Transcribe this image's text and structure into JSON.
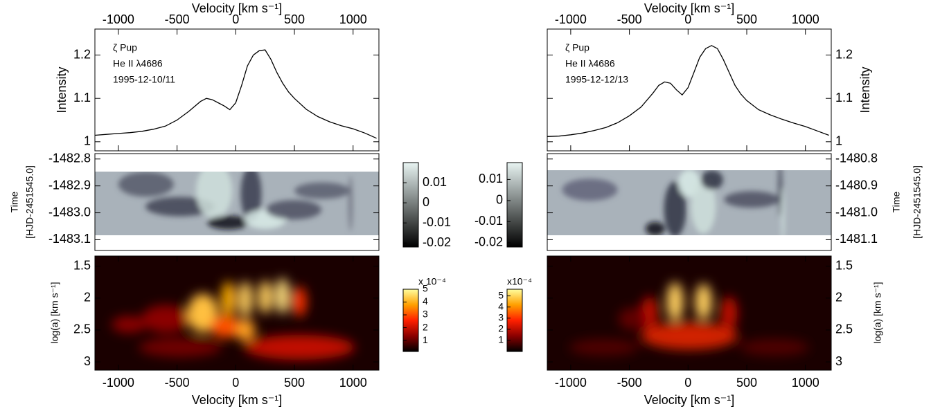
{
  "chart_data": [
    {
      "type": "line",
      "xlabel": "Velocity [km s⁻¹]",
      "ylabel": "Intensity",
      "annotations": [
        "ζ Pup",
        "He II λ4686",
        "1995-12-10/11"
      ],
      "x": [
        -1200,
        -1100,
        -1000,
        -900,
        -800,
        -700,
        -600,
        -500,
        -400,
        -300,
        -250,
        -200,
        -150,
        -100,
        -50,
        0,
        50,
        100,
        150,
        200,
        250,
        300,
        350,
        400,
        450,
        500,
        600,
        700,
        800,
        900,
        1000,
        1100,
        1200
      ],
      "values": [
        1.015,
        1.017,
        1.019,
        1.021,
        1.024,
        1.029,
        1.036,
        1.05,
        1.07,
        1.093,
        1.1,
        1.097,
        1.09,
        1.083,
        1.074,
        1.09,
        1.13,
        1.175,
        1.2,
        1.21,
        1.212,
        1.19,
        1.16,
        1.135,
        1.115,
        1.1,
        1.075,
        1.058,
        1.046,
        1.037,
        1.03,
        1.02,
        1.008
      ],
      "color": "#000000",
      "xlim": [
        -1200,
        1220
      ],
      "xticks": [
        -1000,
        -500,
        0,
        500,
        1000
      ],
      "ylim": [
        0.979,
        1.26
      ],
      "yticks": [
        1,
        1.1,
        1.2
      ]
    },
    {
      "type": "heatmap",
      "ylabel": "Time",
      "ylabel2": "[HJD-2451545.0]",
      "ylim": [
        -1483.14,
        -1482.78
      ],
      "yticks": [
        -1482.8,
        -1482.9,
        {
          "value": -1483,
          "label": "-1483.0"
        },
        -1483.1
      ],
      "colormap": [
        "#000000",
        "#e8f4f2"
      ],
      "clim": [
        -0.022,
        0.02
      ],
      "cticks": [
        0.01,
        0,
        -0.01,
        -0.02
      ]
    },
    {
      "type": "heatmap",
      "ylabel": "log(a) [km s⁻¹]",
      "xlabel": "Velocity [km s⁻¹]",
      "ylim": [
        1.34,
        3.13
      ],
      "y_inverted": true,
      "yticks": [
        1.5,
        2,
        2.5,
        3
      ],
      "xlim": [
        -1200,
        1220
      ],
      "xticks": [
        -1000,
        -500,
        0,
        500,
        1000
      ],
      "colormap": [
        "#000000",
        "#8b0000",
        "#ff2000",
        "#ffa000",
        "#ffffa0"
      ],
      "clim": [
        0.14,
        5
      ],
      "cticks": [
        5,
        4,
        3,
        2,
        1
      ],
      "clabel": "x 10⁻⁴"
    },
    {
      "type": "line",
      "xlabel": "Velocity [km s⁻¹]",
      "ylabel": "Intensity",
      "annotations": [
        "ζ Pup",
        "He II λ4686",
        "1995-12-12/13"
      ],
      "x": [
        -1200,
        -1100,
        -1000,
        -900,
        -800,
        -700,
        -600,
        -500,
        -400,
        -300,
        -250,
        -200,
        -150,
        -100,
        -50,
        0,
        50,
        100,
        150,
        200,
        250,
        300,
        350,
        400,
        450,
        500,
        600,
        700,
        800,
        900,
        1000,
        1100,
        1200
      ],
      "values": [
        1.012,
        1.013,
        1.016,
        1.02,
        1.026,
        1.033,
        1.044,
        1.06,
        1.08,
        1.112,
        1.13,
        1.138,
        1.135,
        1.12,
        1.108,
        1.125,
        1.16,
        1.195,
        1.215,
        1.222,
        1.215,
        1.19,
        1.16,
        1.13,
        1.11,
        1.095,
        1.074,
        1.062,
        1.052,
        1.043,
        1.035,
        1.025,
        1.015
      ],
      "color": "#000000",
      "xlim": [
        -1200,
        1220
      ],
      "xticks": [
        -1000,
        -500,
        0,
        500,
        1000
      ],
      "ylim": [
        0.979,
        1.26
      ],
      "yticks": [
        1,
        1.1,
        1.2
      ]
    },
    {
      "type": "heatmap",
      "ylabel": "Time",
      "ylabel2": "[HJD-2451545.0]",
      "ylim": [
        -1481.14,
        -1480.78
      ],
      "yticks": [
        -1480.8,
        -1480.9,
        {
          "value": -1481,
          "label": "-1481.0"
        },
        -1481.1
      ],
      "colormap": [
        "#000000",
        "#e8f4f2"
      ],
      "clim": [
        -0.022,
        0.018
      ],
      "cticks": [
        0.01,
        0,
        -0.01,
        -0.02
      ]
    },
    {
      "type": "heatmap",
      "ylabel": "log(a) [km s⁻¹]",
      "xlabel": "Velocity [km s⁻¹]",
      "ylim": [
        1.34,
        3.13
      ],
      "y_inverted": true,
      "yticks": [
        1.5,
        2,
        2.5,
        3
      ],
      "xlim": [
        -1200,
        1220
      ],
      "xticks": [
        -1000,
        -500,
        0,
        500,
        1000
      ],
      "colormap": [
        "#000000",
        "#8b0000",
        "#ff2000",
        "#ffa000",
        "#ffffa0"
      ],
      "clim": [
        0,
        5.6
      ],
      "cticks": [
        5,
        4,
        3,
        2,
        1
      ],
      "clabel": "x10⁻⁴"
    }
  ]
}
